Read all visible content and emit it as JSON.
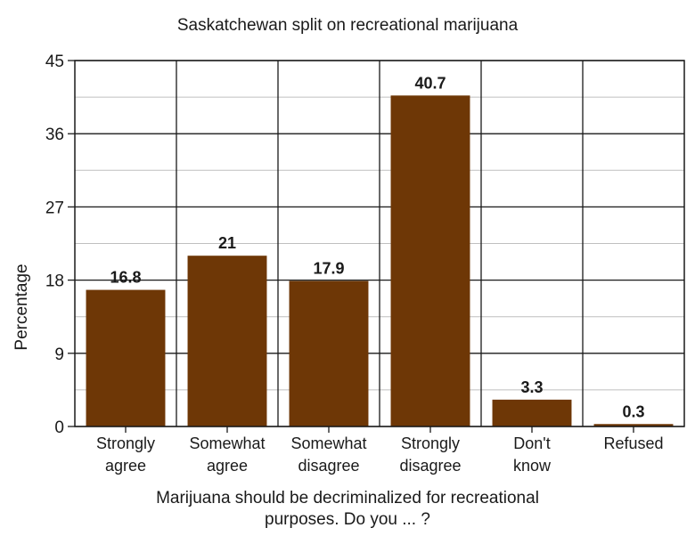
{
  "chart_data": {
    "type": "bar",
    "title": "Saskatchewan split on recreational marijuana",
    "ylabel": "Percentage",
    "xlabel": [
      "Marijuana should be decriminalized for recreational",
      "purposes. Do you ... ?"
    ],
    "categories": [
      [
        "Strongly",
        "agree"
      ],
      [
        "Somewhat",
        "agree"
      ],
      [
        "Somewhat",
        "disagree"
      ],
      [
        "Strongly",
        "disagree"
      ],
      [
        "Don't",
        "know"
      ],
      [
        "Refused"
      ]
    ],
    "values": [
      16.8,
      21,
      17.9,
      40.7,
      3.3,
      0.3
    ],
    "value_labels": [
      "16.8",
      "21",
      "17.9",
      "40.7",
      "3.3",
      "0.3"
    ],
    "ylim": [
      0,
      45
    ],
    "yticks": [
      0,
      9,
      18,
      27,
      36,
      45
    ],
    "minor_grid": true,
    "grid": true,
    "bar_color": "#6e3706",
    "grid_color": "#1a1a1a",
    "minor_grid_color": "#bfbfbf"
  }
}
